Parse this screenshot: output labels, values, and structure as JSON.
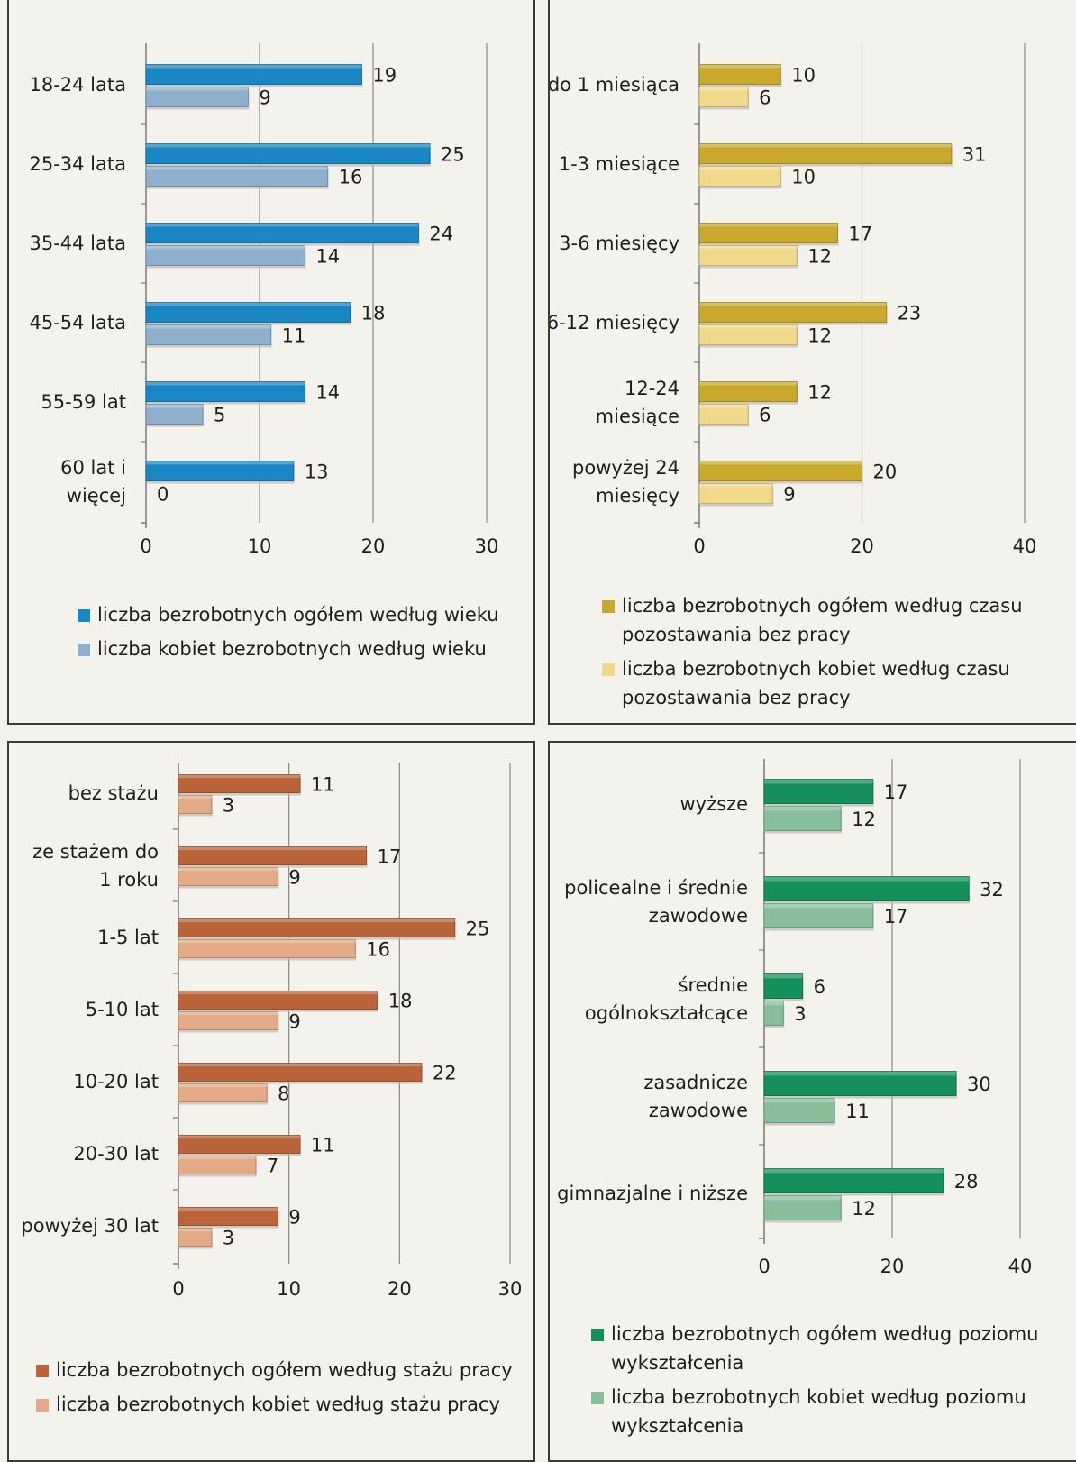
{
  "chart_data": [
    {
      "id": "age",
      "type": "bar",
      "orientation": "horizontal",
      "categories": [
        [
          "18-24 lata"
        ],
        [
          "25-34 lata"
        ],
        [
          "35-44 lata"
        ],
        [
          "45-54 lata"
        ],
        [
          "55-59 lat"
        ],
        [
          "60 lat i",
          "więcej"
        ]
      ],
      "series": [
        {
          "name": "liczba bezrobotnych ogółem według wieku",
          "color": "#1a86c4",
          "values": [
            19,
            25,
            24,
            18,
            14,
            13
          ]
        },
        {
          "name": "liczba kobiet bezrobotnych według wieku",
          "color": "#8fb0cc",
          "values": [
            9,
            16,
            14,
            11,
            5,
            0
          ]
        }
      ],
      "xlim": [
        0,
        30
      ],
      "xticks": [
        0,
        10,
        20,
        30
      ],
      "grid": true,
      "legend_position": "bottom"
    },
    {
      "id": "duration",
      "type": "bar",
      "orientation": "horizontal",
      "categories": [
        [
          "do 1 miesiąca"
        ],
        [
          "1-3 miesiące"
        ],
        [
          "3-6 miesięcy"
        ],
        [
          "6-12 miesięcy"
        ],
        [
          "12-24",
          "miesiące"
        ],
        [
          "powyżej 24",
          "miesięcy"
        ]
      ],
      "series": [
        {
          "name": "liczba bezrobotnych ogółem według czasu pozostawania bez pracy",
          "color": "#c8a92e",
          "values": [
            10,
            31,
            17,
            23,
            12,
            20
          ]
        },
        {
          "name": "liczba bezrobotnych kobiet według czasu pozostawania bez pracy",
          "color": "#f0d98a",
          "values": [
            6,
            10,
            12,
            12,
            6,
            9
          ]
        }
      ],
      "xlim": [
        0,
        40
      ],
      "xticks": [
        0,
        20,
        40
      ],
      "grid": true,
      "legend_position": "bottom"
    },
    {
      "id": "seniority",
      "type": "bar",
      "orientation": "horizontal",
      "categories": [
        [
          "bez stażu"
        ],
        [
          "ze stażem do",
          "1 roku"
        ],
        [
          "1-5 lat"
        ],
        [
          "5-10 lat"
        ],
        [
          "10-20 lat"
        ],
        [
          "20-30 lat"
        ],
        [
          "powyżej 30 lat"
        ]
      ],
      "series": [
        {
          "name": "liczba bezrobotnych ogółem według stażu pracy",
          "color": "#b9643a",
          "values": [
            11,
            17,
            25,
            18,
            22,
            11,
            9
          ]
        },
        {
          "name": "liczba bezrobotnych kobiet według stażu pracy",
          "color": "#e2aa86",
          "values": [
            3,
            9,
            16,
            9,
            8,
            7,
            3
          ]
        }
      ],
      "xlim": [
        0,
        30
      ],
      "xticks": [
        0,
        10,
        20,
        30
      ],
      "grid": true,
      "legend_position": "bottom"
    },
    {
      "id": "education",
      "type": "bar",
      "orientation": "horizontal",
      "categories": [
        [
          "wyższe"
        ],
        [
          "policealne i średnie",
          "zawodowe"
        ],
        [
          "średnie",
          "ogólnokształcące"
        ],
        [
          "zasadnicze",
          "zawodowe"
        ],
        [
          "gimnazjalne i niższe"
        ]
      ],
      "series": [
        {
          "name": "liczba bezrobotnych ogółem według poziomu wykształcenia",
          "color": "#16905a",
          "values": [
            17,
            32,
            6,
            30,
            28
          ]
        },
        {
          "name": "liczba bezrobotnych kobiet według poziomu wykształcenia",
          "color": "#86bf9a",
          "values": [
            12,
            17,
            3,
            11,
            12
          ]
        }
      ],
      "xlim": [
        0,
        40
      ],
      "xticks": [
        0,
        20,
        40
      ],
      "grid": true,
      "legend_position": "bottom"
    }
  ],
  "legends": [
    {
      "items": [
        {
          "lines": [
            "liczba bezrobotnych ogółem według wieku"
          ]
        },
        {
          "lines": [
            "liczba kobiet bezrobotnych według wieku"
          ]
        }
      ]
    },
    {
      "items": [
        {
          "lines": [
            "liczba bezrobotnych ogółem według czasu",
            "pozostawania bez pracy"
          ]
        },
        {
          "lines": [
            "liczba bezrobotnych kobiet według czasu",
            "pozostawania bez pracy"
          ]
        }
      ]
    },
    {
      "items": [
        {
          "lines": [
            "liczba bezrobotnych ogółem według stażu pracy"
          ]
        },
        {
          "lines": [
            "liczba bezrobotnych kobiet według stażu pracy"
          ]
        }
      ]
    },
    {
      "items": [
        {
          "lines": [
            "liczba bezrobotnych ogółem według poziomu",
            "wykształcenia"
          ]
        },
        {
          "lines": [
            "liczba bezrobotnych kobiet według poziomu",
            "wykształcenia"
          ]
        }
      ]
    }
  ]
}
